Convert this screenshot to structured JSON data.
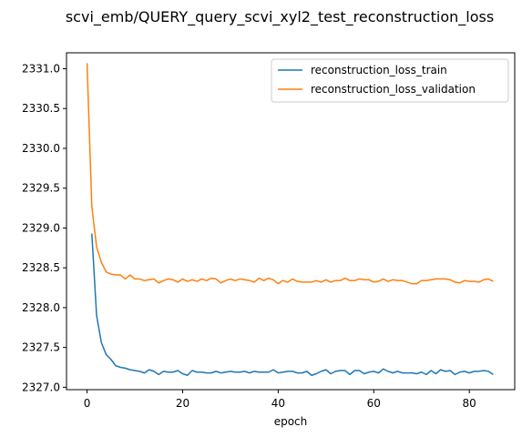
{
  "chart_data": {
    "type": "line",
    "title": "scvi_emb/QUERY_query_scvi_xyl2_test_reconstruction_loss",
    "xlabel": "epoch",
    "ylabel": "",
    "xlim": [
      -4.3,
      89.5
    ],
    "ylim": [
      2326.97,
      2331.2
    ],
    "xticks": [
      0,
      20,
      40,
      60,
      80
    ],
    "yticks": [
      2327.0,
      2327.5,
      2328.0,
      2328.5,
      2329.0,
      2329.5,
      2330.0,
      2330.5,
      2331.0
    ],
    "ytick_labels": [
      "2327.0",
      "2327.5",
      "2328.0",
      "2328.5",
      "2329.0",
      "2329.5",
      "2330.0",
      "2330.5",
      "2331.0"
    ],
    "grid": false,
    "legend_position": "upper right",
    "series": [
      {
        "name": "reconstruction_loss_train",
        "color": "#1f77b4",
        "x": [
          1,
          2,
          3,
          4,
          5,
          6,
          7,
          8,
          9,
          10,
          11,
          12,
          13,
          14,
          15,
          16,
          17,
          18,
          19,
          20,
          21,
          22,
          23,
          24,
          25,
          26,
          27,
          28,
          29,
          30,
          31,
          32,
          33,
          34,
          35,
          36,
          37,
          38,
          39,
          40,
          41,
          42,
          43,
          44,
          45,
          46,
          47,
          48,
          49,
          50,
          51,
          52,
          53,
          54,
          55,
          56,
          57,
          58,
          59,
          60,
          61,
          62,
          63,
          64,
          65,
          66,
          67,
          68,
          69,
          70,
          71,
          72,
          73,
          74,
          75,
          76,
          77,
          78,
          79,
          80,
          81,
          82,
          83,
          84,
          85
        ],
        "values": [
          2328.93,
          2327.9,
          2327.56,
          2327.41,
          2327.35,
          2327.27,
          2327.25,
          2327.24,
          2327.22,
          2327.21,
          2327.2,
          2327.18,
          2327.22,
          2327.2,
          2327.16,
          2327.2,
          2327.19,
          2327.19,
          2327.21,
          2327.17,
          2327.15,
          2327.21,
          2327.19,
          2327.19,
          2327.18,
          2327.18,
          2327.2,
          2327.18,
          2327.19,
          2327.2,
          2327.19,
          2327.19,
          2327.2,
          2327.18,
          2327.2,
          2327.19,
          2327.19,
          2327.19,
          2327.22,
          2327.18,
          2327.19,
          2327.2,
          2327.2,
          2327.18,
          2327.18,
          2327.2,
          2327.15,
          2327.17,
          2327.2,
          2327.22,
          2327.17,
          2327.2,
          2327.21,
          2327.21,
          2327.16,
          2327.21,
          2327.21,
          2327.17,
          2327.19,
          2327.2,
          2327.18,
          2327.23,
          2327.2,
          2327.18,
          2327.2,
          2327.18,
          2327.18,
          2327.18,
          2327.17,
          2327.19,
          2327.16,
          2327.21,
          2327.17,
          2327.22,
          2327.2,
          2327.21,
          2327.16,
          2327.19,
          2327.2,
          2327.18,
          2327.2,
          2327.2,
          2327.21,
          2327.2,
          2327.16
        ]
      },
      {
        "name": "reconstruction_loss_validation",
        "color": "#ff7f0e",
        "x": [
          0,
          1,
          2,
          3,
          4,
          5,
          6,
          7,
          8,
          9,
          10,
          11,
          12,
          13,
          14,
          15,
          16,
          17,
          18,
          19,
          20,
          21,
          22,
          23,
          24,
          25,
          26,
          27,
          28,
          29,
          30,
          31,
          32,
          33,
          34,
          35,
          36,
          37,
          38,
          39,
          40,
          41,
          42,
          43,
          44,
          45,
          46,
          47,
          48,
          49,
          50,
          51,
          52,
          53,
          54,
          55,
          56,
          57,
          58,
          59,
          60,
          61,
          62,
          63,
          64,
          65,
          66,
          67,
          68,
          69,
          70,
          71,
          72,
          73,
          74,
          75,
          76,
          77,
          78,
          79,
          80,
          81,
          82,
          83,
          84,
          85
        ],
        "values": [
          2331.07,
          2329.27,
          2328.76,
          2328.57,
          2328.45,
          2328.42,
          2328.41,
          2328.41,
          2328.36,
          2328.41,
          2328.36,
          2328.36,
          2328.34,
          2328.35,
          2328.36,
          2328.31,
          2328.34,
          2328.36,
          2328.35,
          2328.32,
          2328.36,
          2328.33,
          2328.35,
          2328.33,
          2328.36,
          2328.34,
          2328.37,
          2328.36,
          2328.31,
          2328.34,
          2328.36,
          2328.34,
          2328.36,
          2328.35,
          2328.34,
          2328.32,
          2328.37,
          2328.34,
          2328.37,
          2328.35,
          2328.3,
          2328.34,
          2328.32,
          2328.36,
          2328.33,
          2328.32,
          2328.32,
          2328.32,
          2328.34,
          2328.32,
          2328.35,
          2328.32,
          2328.34,
          2328.34,
          2328.37,
          2328.34,
          2328.34,
          2328.36,
          2328.35,
          2328.35,
          2328.32,
          2328.33,
          2328.36,
          2328.33,
          2328.35,
          2328.34,
          2328.34,
          2328.32,
          2328.3,
          2328.3,
          2328.34,
          2328.34,
          2328.35,
          2328.36,
          2328.36,
          2328.36,
          2328.35,
          2328.32,
          2328.31,
          2328.34,
          2328.33,
          2328.33,
          2328.32,
          2328.35,
          2328.36,
          2328.33
        ]
      }
    ]
  }
}
